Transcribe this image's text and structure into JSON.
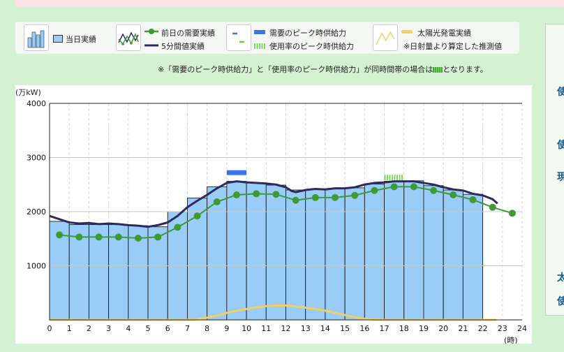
{
  "legend": {
    "actual": "当日実績",
    "prev_day": "前日の需要実績",
    "five_min": "5分間値実績",
    "peak_demand": "需要のピーク時供給力",
    "peak_usage": "使用率のピーク時供給力",
    "solar": "太陽光発電実績",
    "solar_note": "※日射量より算定した推測値"
  },
  "note": {
    "before": "※「需要のピーク時供給力」と「使用率のピーク時供給力」が同時間帯の場合は",
    "after": "となります。"
  },
  "side_chars": [
    "使",
    "使",
    "現",
    "太",
    "使"
  ],
  "colors": {
    "bar": "#99ccf6",
    "prev_day": "#3f9a35",
    "five_min": "#2d2b5e",
    "peak_demand": "#3c73ee",
    "peak_usage": "#5cd43e",
    "solar": "#f4d061"
  },
  "chart_data": {
    "type": "bar",
    "unit_label": "(万kW)",
    "xlabel": "(時)",
    "ylim": [
      0,
      4000
    ],
    "xlim": [
      0,
      24
    ],
    "y_ticks": [
      "1000",
      "2000",
      "3000",
      "4000"
    ],
    "x_ticks": [
      "0",
      "1",
      "2",
      "3",
      "4",
      "5",
      "6",
      "7",
      "8",
      "9",
      "10",
      "11",
      "12",
      "13",
      "14",
      "15",
      "16",
      "17",
      "18",
      "19",
      "20",
      "21",
      "22",
      "23",
      "24"
    ],
    "grid": true,
    "hours": [
      0,
      1,
      2,
      3,
      4,
      5,
      6,
      7,
      8,
      9,
      10,
      11,
      12,
      13,
      14,
      15,
      16,
      17,
      18,
      19,
      20,
      21
    ],
    "actual": [
      1820,
      1760,
      1760,
      1760,
      1740,
      1720,
      2000,
      2250,
      2460,
      2560,
      2530,
      2490,
      2400,
      2410,
      2420,
      2440,
      2510,
      2560,
      2570,
      2480,
      2400,
      2320
    ],
    "prev_day": {
      "x": [
        0.5,
        1.5,
        2.5,
        3.5,
        4.5,
        5.5,
        6.5,
        7.5,
        8.5,
        9.5,
        10.5,
        11.5,
        12.5,
        13.5,
        14.5,
        15.5,
        16.5,
        17.5,
        18.5,
        19.5,
        20.5,
        21.5,
        22.5,
        23.5
      ],
      "y": [
        1570,
        1530,
        1530,
        1530,
        1510,
        1530,
        1710,
        1920,
        2180,
        2310,
        2330,
        2320,
        2210,
        2260,
        2260,
        2300,
        2390,
        2460,
        2460,
        2390,
        2310,
        2220,
        2080,
        1970
      ]
    },
    "five_min": {
      "x": [
        0,
        0.5,
        1,
        1.5,
        2,
        2.5,
        3,
        3.5,
        4,
        4.5,
        5,
        5.5,
        6,
        6.5,
        7,
        7.5,
        8,
        8.5,
        9,
        9.5,
        10,
        10.5,
        11,
        11.5,
        12,
        12.3,
        12.5,
        13,
        13.5,
        14,
        14.5,
        15,
        15.5,
        16,
        16.5,
        17,
        17.5,
        18,
        18.5,
        19,
        19.5,
        20,
        20.5,
        21,
        21.5,
        22,
        22.5,
        22.75
      ],
      "y": [
        1920,
        1860,
        1800,
        1780,
        1790,
        1770,
        1780,
        1770,
        1750,
        1740,
        1720,
        1750,
        1800,
        1920,
        2080,
        2200,
        2310,
        2430,
        2530,
        2560,
        2540,
        2530,
        2520,
        2500,
        2450,
        2380,
        2360,
        2400,
        2420,
        2410,
        2430,
        2430,
        2450,
        2500,
        2530,
        2540,
        2560,
        2560,
        2560,
        2530,
        2500,
        2450,
        2410,
        2390,
        2330,
        2300,
        2230,
        2150
      ]
    },
    "solar": {
      "x": [
        0,
        7,
        7.5,
        8,
        8.5,
        9,
        9.5,
        10,
        10.5,
        11,
        11.5,
        12,
        12.5,
        13,
        13.5,
        14,
        14.5,
        15,
        15.5,
        16,
        16.5,
        17,
        22.7
      ],
      "y": [
        0,
        0,
        10,
        40,
        80,
        130,
        170,
        200,
        230,
        255,
        265,
        265,
        250,
        225,
        200,
        170,
        130,
        90,
        50,
        20,
        5,
        0,
        0
      ]
    },
    "peak_demand": {
      "from": 9.0,
      "to": 10.0,
      "value": 2720
    },
    "peak_usage": {
      "from": 17.0,
      "to": 18.0,
      "value": 2630
    }
  }
}
